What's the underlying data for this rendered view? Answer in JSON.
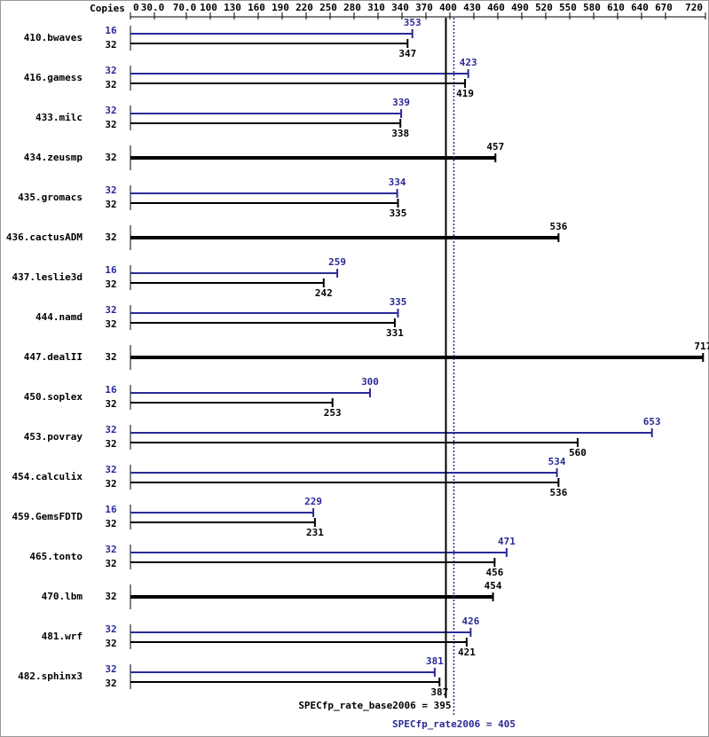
{
  "chart_data": {
    "type": "bar",
    "axis_header": "Copies",
    "xlim": [
      0,
      720
    ],
    "xticks": [
      0,
      {
        "value": 30,
        "label": "30.0"
      },
      {
        "value": 70,
        "label": "70.0"
      },
      100,
      130,
      160,
      190,
      220,
      250,
      280,
      310,
      340,
      370,
      400,
      430,
      460,
      490,
      520,
      550,
      580,
      610,
      640,
      670,
      720
    ],
    "categories": [
      "410.bwaves",
      "416.gamess",
      "433.milc",
      "434.zeusmp",
      "435.gromacs",
      "436.cactusADM",
      "437.leslie3d",
      "444.namd",
      "447.dealII",
      "450.soplex",
      "453.povray",
      "454.calculix",
      "459.GemsFDTD",
      "465.tonto",
      "470.lbm",
      "481.wrf",
      "482.sphinx3"
    ],
    "series": [
      {
        "color": "#2a2a96",
        "copies": [
          "16",
          "32",
          "32",
          null,
          "32",
          null,
          "16",
          "32",
          null,
          "16",
          "32",
          "32",
          "16",
          "32",
          null,
          "32",
          "32"
        ],
        "values": [
          353,
          423,
          339,
          null,
          334,
          null,
          259,
          335,
          null,
          300,
          653,
          534,
          229,
          471,
          null,
          426,
          381
        ]
      },
      {
        "color": "#000000",
        "copies": [
          "32",
          "32",
          "32",
          "32",
          "32",
          "32",
          "32",
          "32",
          "32",
          "32",
          "32",
          "32",
          "32",
          "32",
          "32",
          "32",
          "32"
        ],
        "values": [
          347,
          419,
          338,
          457,
          335,
          536,
          242,
          331,
          717,
          253,
          560,
          536,
          231,
          456,
          454,
          421,
          387
        ]
      }
    ],
    "reference_lines": [
      {
        "label": "SPECfp_rate_base2006 = 395",
        "value": 395,
        "color": "#000000",
        "style": "solid"
      },
      {
        "label": "SPECfp_rate2006 = 405",
        "value": 405,
        "color": "#2a2a96",
        "style": "dotted"
      }
    ]
  }
}
